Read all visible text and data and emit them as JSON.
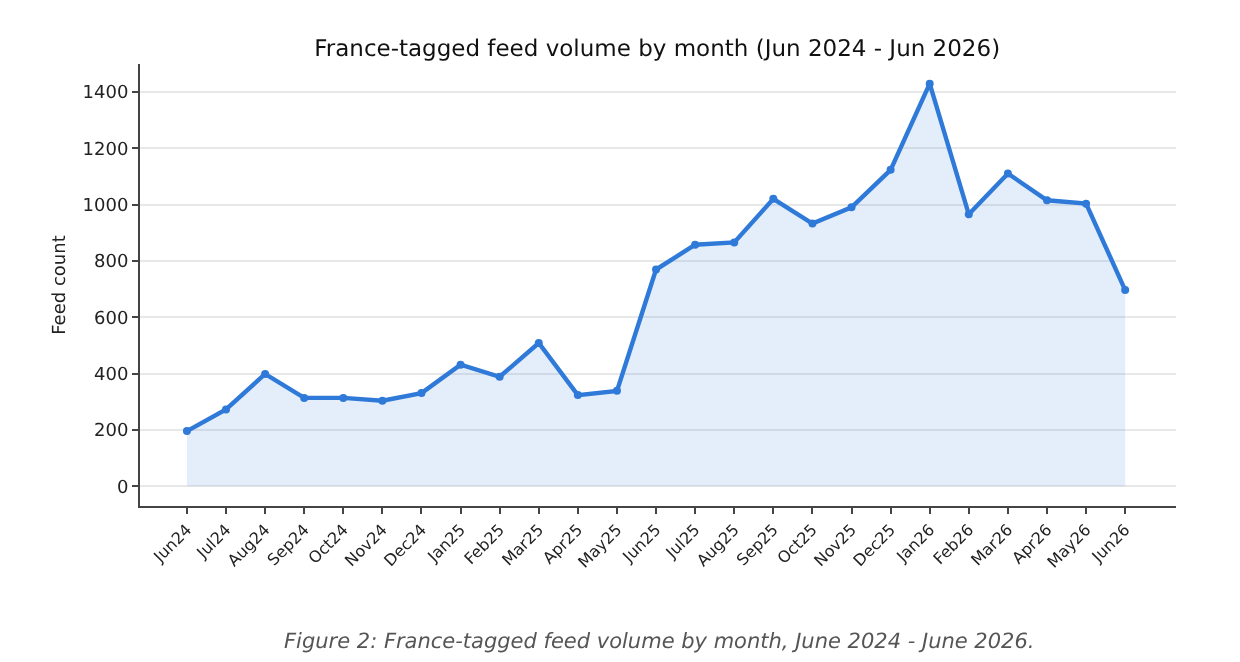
{
  "chart_data": {
    "type": "area",
    "title": "France-tagged feed volume by month (Jun 2024 - Jun 2026)",
    "ylabel": "Feed count",
    "categories": [
      "Jun24",
      "Jul24",
      "Aug24",
      "Sep24",
      "Oct24",
      "Nov24",
      "Dec24",
      "Jan25",
      "Feb25",
      "Mar25",
      "Apr25",
      "May25",
      "Jun25",
      "Jul25",
      "Aug25",
      "Sep25",
      "Oct25",
      "Nov25",
      "Dec25",
      "Jan26",
      "Feb26",
      "Mar26",
      "Apr26",
      "May26",
      "Jun26"
    ],
    "series": [
      {
        "color": "#2f7ad9",
        "values": [
          196,
          273,
          399,
          314,
          314,
          304,
          331,
          432,
          389,
          509,
          324,
          339,
          770,
          858,
          866,
          1021,
          933,
          991,
          1124,
          1430,
          966,
          1111,
          1016,
          1004,
          697
        ]
      }
    ],
    "ylim": [
      -70,
      1500
    ],
    "yticks": [
      0,
      200,
      400,
      600,
      800,
      1000,
      1200,
      1400
    ],
    "grid": "y",
    "marker": "circle",
    "line_style": "solid",
    "legend": false,
    "annotations": [
      "Figure 2: France-tagged feed volume by month, June 2024 - June 2026."
    ]
  }
}
